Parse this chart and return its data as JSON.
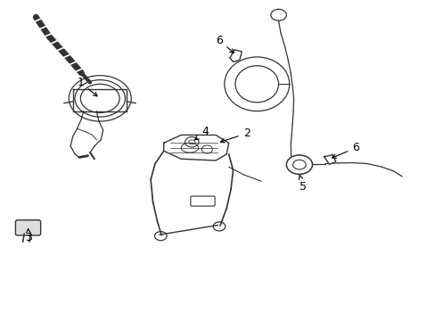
{
  "background_color": "#ffffff",
  "line_color": "#333333",
  "label_color": "#000000",
  "fig_width": 4.89,
  "fig_height": 3.6,
  "dpi": 100
}
